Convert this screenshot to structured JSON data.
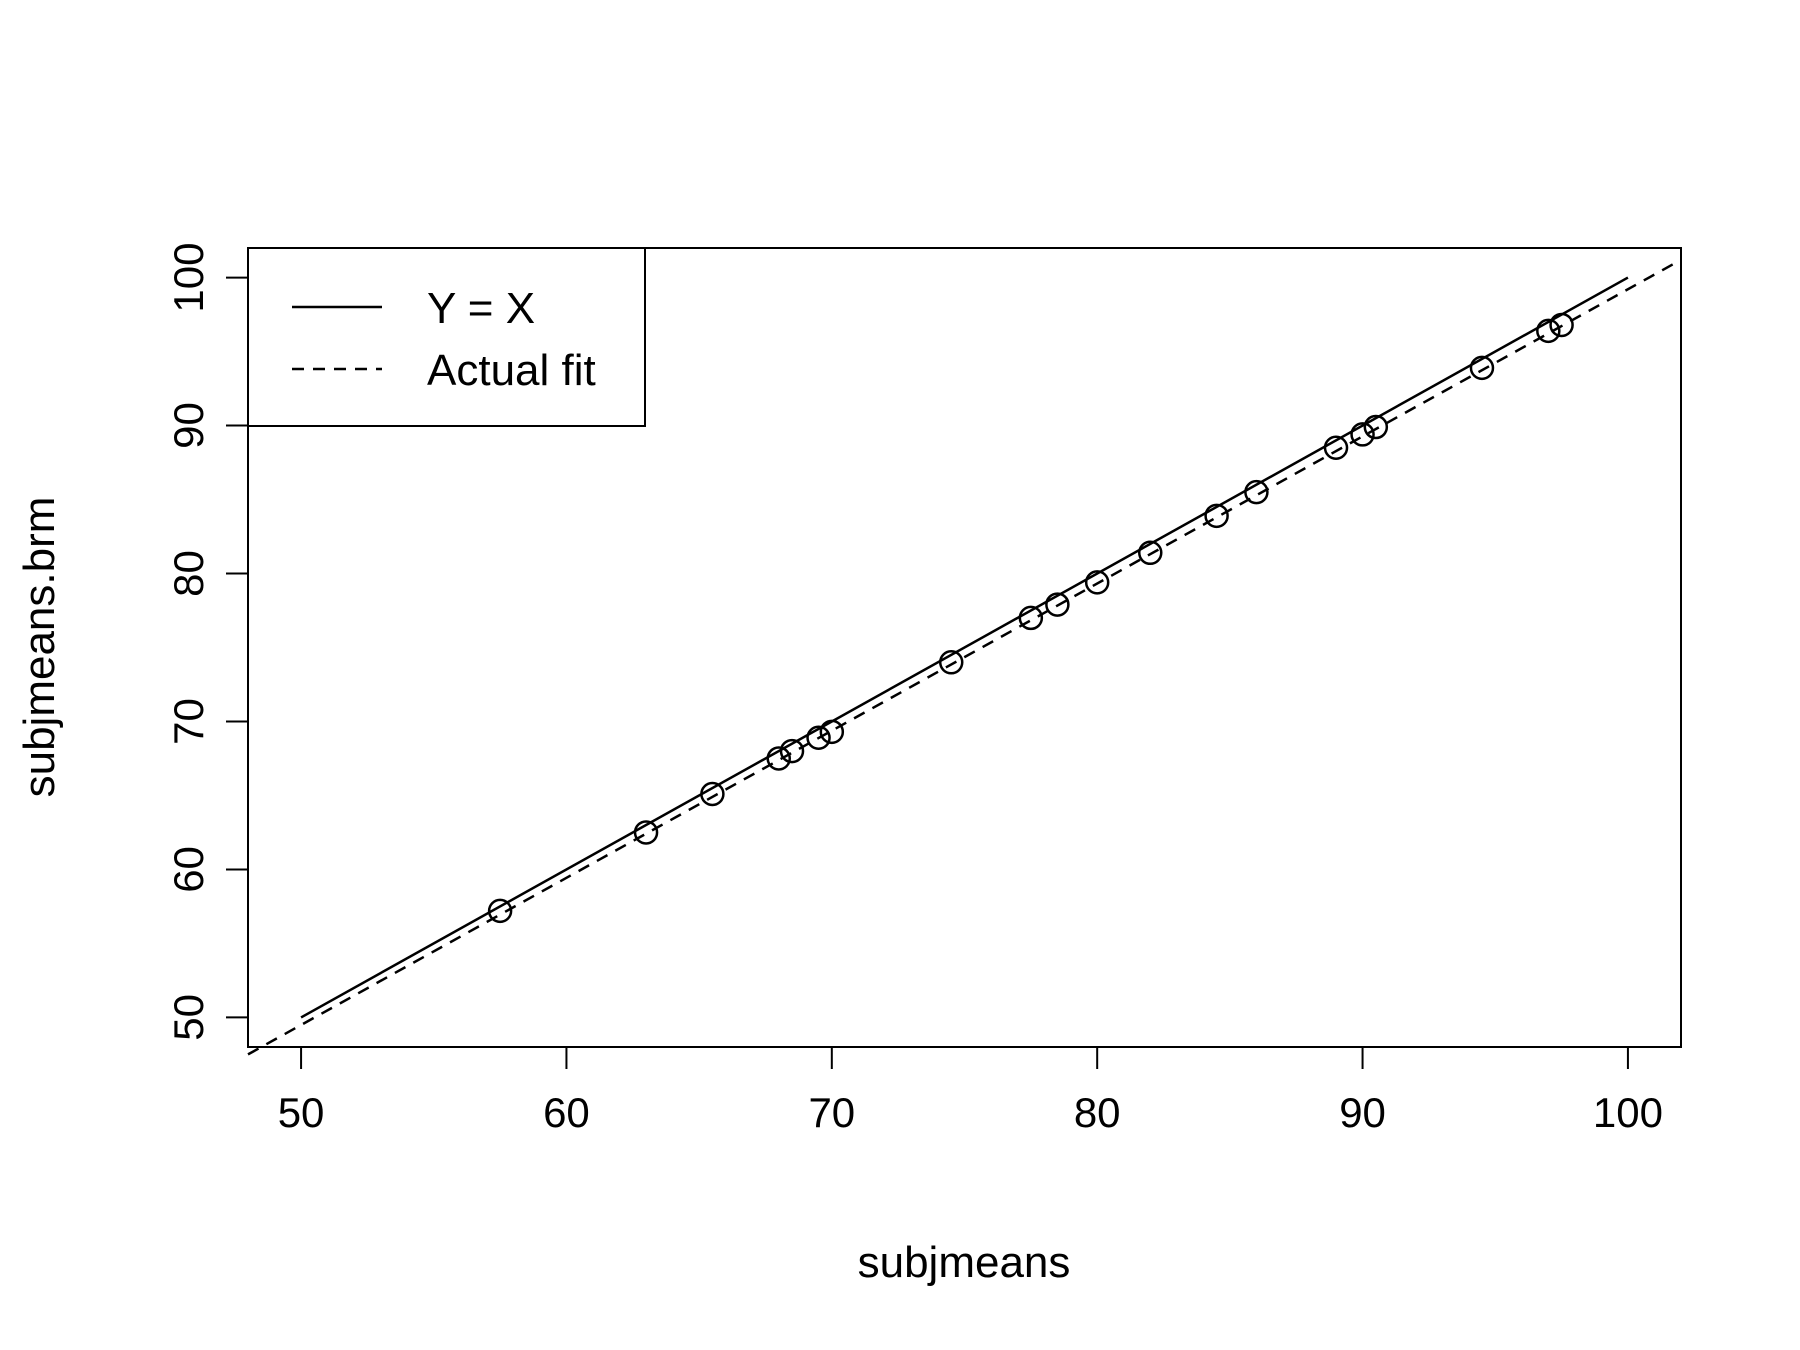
{
  "chart_data": {
    "type": "scatter",
    "title": "",
    "xlabel": "subjmeans",
    "ylabel": "subjmeans.brm",
    "xlim": [
      48,
      102
    ],
    "ylim": [
      48,
      102
    ],
    "x_ticks": [
      50,
      60,
      70,
      80,
      90,
      100
    ],
    "y_ticks": [
      50,
      60,
      70,
      80,
      90,
      100
    ],
    "grid": false,
    "legend_position": "top-left",
    "points": [
      {
        "x": 57.5,
        "y": 57.2
      },
      {
        "x": 63.0,
        "y": 62.5
      },
      {
        "x": 65.5,
        "y": 65.1
      },
      {
        "x": 68.0,
        "y": 67.5
      },
      {
        "x": 68.5,
        "y": 68.0
      },
      {
        "x": 69.5,
        "y": 68.9
      },
      {
        "x": 70.0,
        "y": 69.3
      },
      {
        "x": 74.5,
        "y": 74.0
      },
      {
        "x": 77.5,
        "y": 77.0
      },
      {
        "x": 78.5,
        "y": 77.9
      },
      {
        "x": 80.0,
        "y": 79.4
      },
      {
        "x": 82.0,
        "y": 81.4
      },
      {
        "x": 84.5,
        "y": 83.9
      },
      {
        "x": 86.0,
        "y": 85.5
      },
      {
        "x": 89.0,
        "y": 88.5
      },
      {
        "x": 90.0,
        "y": 89.4
      },
      {
        "x": 90.5,
        "y": 89.9
      },
      {
        "x": 94.5,
        "y": 93.9
      },
      {
        "x": 97.0,
        "y": 96.4
      },
      {
        "x": 97.5,
        "y": 96.8
      }
    ],
    "lines": [
      {
        "name": "Y = X",
        "style": "solid",
        "x": [
          50,
          100
        ],
        "y": [
          50,
          100
        ]
      },
      {
        "name": "Actual fit",
        "style": "dashed",
        "x": [
          48,
          102
        ],
        "y": [
          47.5,
          101.2
        ]
      }
    ],
    "legend": {
      "entries": [
        "Y = X",
        "Actual fit"
      ]
    }
  }
}
